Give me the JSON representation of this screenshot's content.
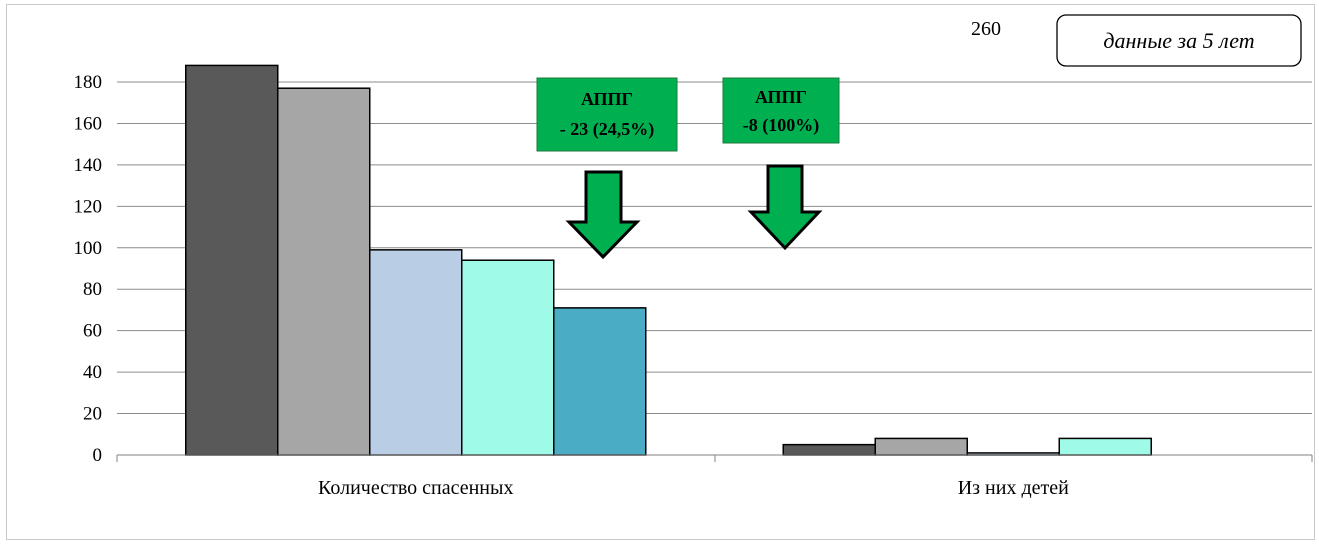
{
  "chart_data": {
    "type": "bar",
    "categories": [
      "Количество спасенных",
      "Из них детей"
    ],
    "series": [
      {
        "values": [
          188,
          5
        ],
        "color": "#595959"
      },
      {
        "values": [
          177,
          8
        ],
        "color": "#a6a6a6"
      },
      {
        "values": [
          99,
          1
        ],
        "color": "#b9cde5"
      },
      {
        "values": [
          94,
          8
        ],
        "color": "#9ffbe7"
      },
      {
        "values": [
          71,
          0
        ],
        "color": "#4bacc6"
      }
    ],
    "ylim": [
      0,
      180
    ],
    "yticks": [
      0,
      20,
      40,
      60,
      80,
      100,
      120,
      140,
      160,
      180
    ],
    "grid": true,
    "annotations": [
      {
        "line1": "АППГ",
        "line2": "- 23 (24,5%)",
        "category": "Количество спасенных"
      },
      {
        "line1": "АППГ",
        "line2": "-8 (100%)",
        "category": "Из них детей"
      }
    ],
    "period_label": "данные за 5 лет",
    "stray_label": "260"
  }
}
